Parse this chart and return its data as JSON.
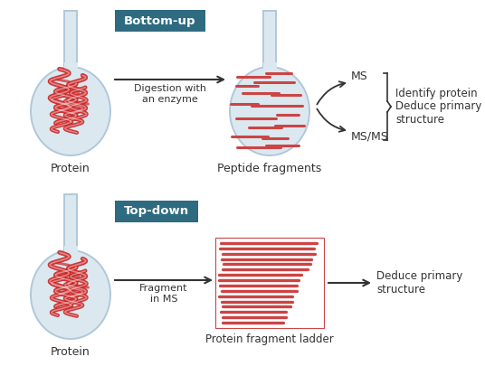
{
  "background_color": "#ffffff",
  "flask_fill_color": "#dce8f0",
  "flask_fill_color2": "#c8dce8",
  "flask_outline_color": "#b0c8d8",
  "protein_color": "#cc2222",
  "fragment_color": "#cc4444",
  "arrow_color": "#333333",
  "label_color_bg": "#2e6b80",
  "label_text_color": "#ffffff",
  "text_color": "#333333",
  "bottom_up_label": "Bottom-up",
  "top_down_label": "Top-down",
  "protein_label": "Protein",
  "peptide_fragments_label": "Peptide fragments",
  "digestion_label": "Digestion with\nan enzyme",
  "ms_label": "MS",
  "msms_label": "MS/MS",
  "identify_label": "Identify protein\nDeduce primary\nstructure",
  "fragment_in_ms_label": "Fragment\nin MS",
  "protein_fragment_ladder_label": "Protein fragment ladder",
  "deduce_label": "Deduce primary\nstructure"
}
